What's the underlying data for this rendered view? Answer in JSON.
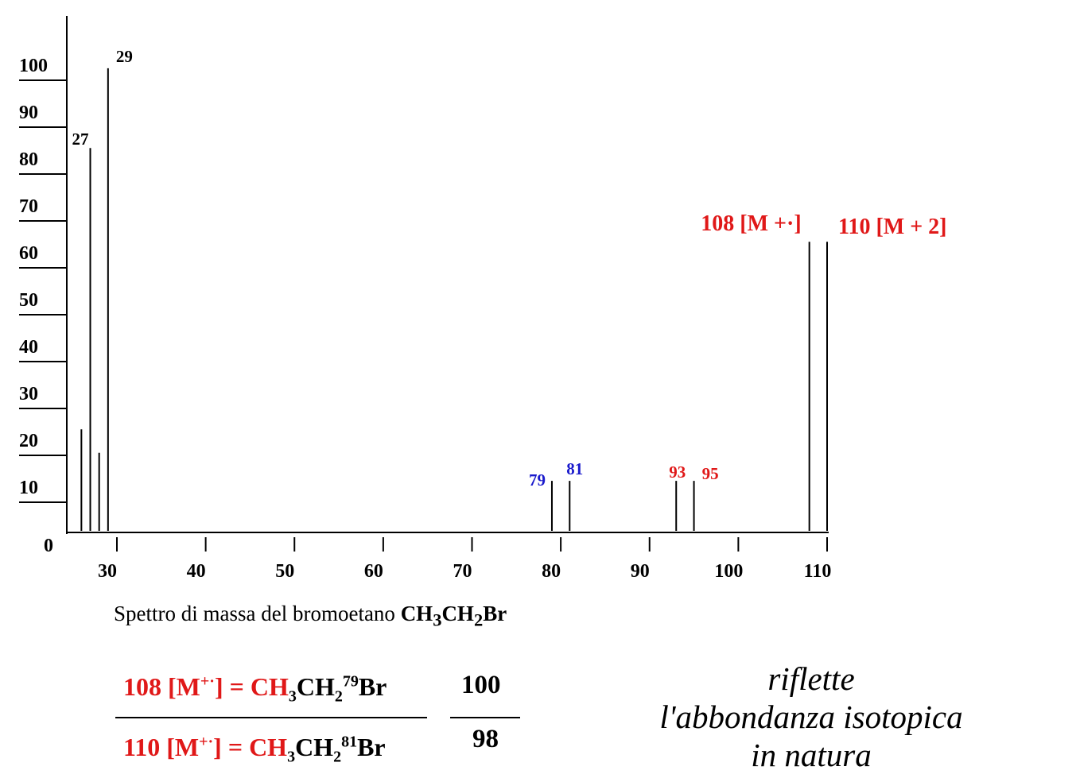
{
  "chart_data": {
    "type": "bar",
    "title": "",
    "xlabel": "",
    "ylabel": "",
    "xlim": [
      25,
      112
    ],
    "ylim": [
      0,
      100
    ],
    "grid": false,
    "x_ticks": [
      30,
      40,
      50,
      60,
      70,
      80,
      90,
      100,
      110
    ],
    "y_ticks": [
      10,
      20,
      30,
      40,
      50,
      60,
      70,
      80,
      90,
      100
    ],
    "y_zero_label": "0",
    "peaks": [
      {
        "mz": 26,
        "intensity": 22,
        "label": "",
        "color": "#000000"
      },
      {
        "mz": 27,
        "intensity": 82,
        "label": "27",
        "color": "#000000"
      },
      {
        "mz": 28,
        "intensity": 17,
        "label": "",
        "color": "#000000"
      },
      {
        "mz": 29,
        "intensity": 99,
        "label": "29",
        "color": "#000000"
      },
      {
        "mz": 79,
        "intensity": 11,
        "label": "79",
        "color": "#1a1acc"
      },
      {
        "mz": 81,
        "intensity": 11,
        "label": "81",
        "color": "#1a1acc"
      },
      {
        "mz": 93,
        "intensity": 11,
        "label": "93",
        "color": "#e01818"
      },
      {
        "mz": 95,
        "intensity": 11,
        "label": "95",
        "color": "#e01818"
      },
      {
        "mz": 108,
        "intensity": 62,
        "label": "108 [M +·]",
        "color": "#e01818"
      },
      {
        "mz": 110,
        "intensity": 62,
        "label": "110 [M + 2]",
        "color": "#e01818"
      }
    ]
  },
  "caption": {
    "text": "Spettro di massa del bromoetano",
    "formula": {
      "a": "CH",
      "s1": "3",
      "b": "CH",
      "s2": "2",
      "c": "Br"
    }
  },
  "equation": {
    "top": {
      "ion": "108 [M",
      "charge": "+·",
      "close": "]",
      "eq": " = CH",
      "s1": "3",
      "mid": "CH",
      "s2": "2",
      "iso": "79",
      "el": "Br"
    },
    "bottom": {
      "ion": "110 [M",
      "charge": "+·",
      "close": "]",
      "eq": " = CH",
      "s1": "3",
      "mid": "CH",
      "s2": "2",
      "iso": "81",
      "el": "Br"
    },
    "ratio_top": "100",
    "ratio_bottom": "98"
  },
  "note": [
    "riflette",
    "l'abbondanza isotopica",
    "in natura"
  ],
  "colors": {
    "red": "#e01818",
    "blue": "#1a1acc",
    "black": "#000000"
  }
}
